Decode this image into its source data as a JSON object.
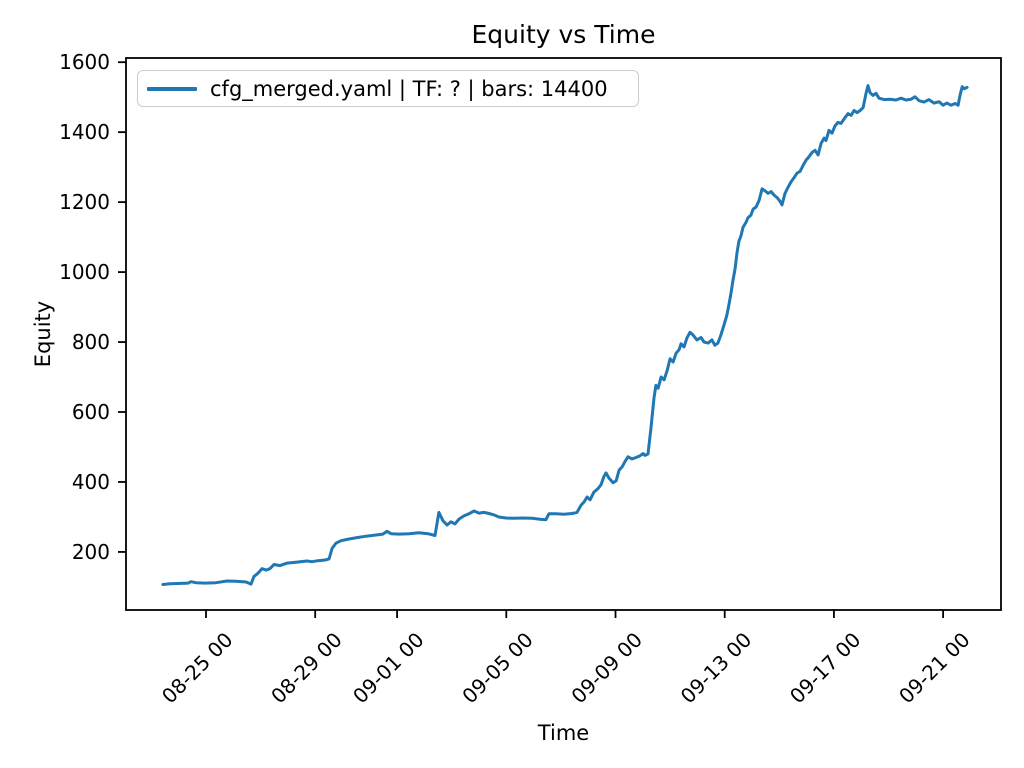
{
  "title": "Equity vs Time",
  "axes": {
    "x_label": "Time",
    "y_label": "Equity"
  },
  "legend": {
    "position": "upper left",
    "entries": [
      {
        "label": "cfg_merged.yaml | TF: ? | bars: 14400",
        "color": "#1f77b4"
      }
    ]
  },
  "chart_data": {
    "type": "line",
    "title": "Equity vs Time",
    "xlabel": "Time",
    "ylabel": "Equity",
    "grid": false,
    "legend_position": "upper left",
    "x_unit": "days since 08-25 00:00",
    "xlim": [
      -2.93,
      29.12
    ],
    "ylim": [
      34,
      1612
    ],
    "y_ticks": [
      200,
      400,
      600,
      800,
      1000,
      1200,
      1400,
      1600
    ],
    "x_ticks": [
      {
        "t": 0,
        "label": "08-25 00"
      },
      {
        "t": 4,
        "label": "08-29 00"
      },
      {
        "t": 7,
        "label": "09-01 00"
      },
      {
        "t": 11,
        "label": "09-05 00"
      },
      {
        "t": 15,
        "label": "09-09 00"
      },
      {
        "t": 19,
        "label": "09-13 00"
      },
      {
        "t": 23,
        "label": "09-17 00"
      },
      {
        "t": 27,
        "label": "09-21 00"
      }
    ],
    "series": [
      {
        "name": "cfg_merged.yaml | TF: ? | bars: 14400",
        "color": "#1f77b4",
        "line_width": 3,
        "points": [
          [
            -1.58,
            107
          ],
          [
            -1.32,
            109
          ],
          [
            -0.92,
            110
          ],
          [
            -0.66,
            111
          ],
          [
            -0.55,
            115
          ],
          [
            -0.37,
            112
          ],
          [
            -0.04,
            111
          ],
          [
            0.37,
            112
          ],
          [
            0.77,
            117
          ],
          [
            1.1,
            116
          ],
          [
            1.47,
            114
          ],
          [
            1.65,
            108
          ],
          [
            1.76,
            130
          ],
          [
            1.9,
            139
          ],
          [
            2.05,
            152
          ],
          [
            2.2,
            148
          ],
          [
            2.34,
            152
          ],
          [
            2.49,
            164
          ],
          [
            2.71,
            161
          ],
          [
            2.97,
            168
          ],
          [
            3.33,
            171
          ],
          [
            3.7,
            174
          ],
          [
            3.88,
            172
          ],
          [
            4.1,
            175
          ],
          [
            4.36,
            177
          ],
          [
            4.51,
            180
          ],
          [
            4.62,
            210
          ],
          [
            4.76,
            225
          ],
          [
            4.95,
            232
          ],
          [
            5.24,
            237
          ],
          [
            5.53,
            241
          ],
          [
            5.86,
            245
          ],
          [
            6.19,
            248
          ],
          [
            6.48,
            251
          ],
          [
            6.63,
            259
          ],
          [
            6.78,
            252
          ],
          [
            7.07,
            251
          ],
          [
            7.44,
            252
          ],
          [
            7.8,
            255
          ],
          [
            8.13,
            252
          ],
          [
            8.39,
            247
          ],
          [
            8.53,
            313
          ],
          [
            8.68,
            289
          ],
          [
            8.83,
            277
          ],
          [
            8.97,
            286
          ],
          [
            9.12,
            280
          ],
          [
            9.27,
            294
          ],
          [
            9.45,
            303
          ],
          [
            9.63,
            309
          ],
          [
            9.82,
            317
          ],
          [
            10.0,
            311
          ],
          [
            10.18,
            313
          ],
          [
            10.37,
            310
          ],
          [
            10.55,
            306
          ],
          [
            10.73,
            300
          ],
          [
            10.99,
            297
          ],
          [
            11.28,
            296
          ],
          [
            11.61,
            297
          ],
          [
            11.94,
            296
          ],
          [
            12.27,
            293
          ],
          [
            12.45,
            292
          ],
          [
            12.56,
            309
          ],
          [
            12.82,
            309
          ],
          [
            13.11,
            308
          ],
          [
            13.41,
            310
          ],
          [
            13.59,
            313
          ],
          [
            13.74,
            334
          ],
          [
            13.85,
            343
          ],
          [
            13.96,
            357
          ],
          [
            14.07,
            349
          ],
          [
            14.21,
            371
          ],
          [
            14.36,
            381
          ],
          [
            14.47,
            392
          ],
          [
            14.58,
            416
          ],
          [
            14.65,
            426
          ],
          [
            14.76,
            411
          ],
          [
            14.91,
            398
          ],
          [
            15.02,
            403
          ],
          [
            15.13,
            434
          ],
          [
            15.24,
            443
          ],
          [
            15.35,
            459
          ],
          [
            15.46,
            472
          ],
          [
            15.6,
            466
          ],
          [
            15.75,
            470
          ],
          [
            15.9,
            475
          ],
          [
            16.01,
            481
          ],
          [
            16.08,
            476
          ],
          [
            16.19,
            480
          ],
          [
            16.3,
            555
          ],
          [
            16.41,
            640
          ],
          [
            16.48,
            676
          ],
          [
            16.56,
            668
          ],
          [
            16.67,
            700
          ],
          [
            16.78,
            692
          ],
          [
            16.89,
            718
          ],
          [
            17.0,
            752
          ],
          [
            17.11,
            743
          ],
          [
            17.22,
            768
          ],
          [
            17.33,
            778
          ],
          [
            17.4,
            795
          ],
          [
            17.51,
            786
          ],
          [
            17.62,
            812
          ],
          [
            17.73,
            828
          ],
          [
            17.84,
            820
          ],
          [
            17.98,
            806
          ],
          [
            18.13,
            813
          ],
          [
            18.24,
            800
          ],
          [
            18.39,
            797
          ],
          [
            18.53,
            806
          ],
          [
            18.64,
            791
          ],
          [
            18.75,
            797
          ],
          [
            18.86,
            820
          ],
          [
            18.97,
            848
          ],
          [
            19.08,
            877
          ],
          [
            19.15,
            905
          ],
          [
            19.23,
            940
          ],
          [
            19.3,
            975
          ],
          [
            19.38,
            1010
          ],
          [
            19.45,
            1055
          ],
          [
            19.52,
            1088
          ],
          [
            19.6,
            1105
          ],
          [
            19.67,
            1128
          ],
          [
            19.78,
            1142
          ],
          [
            19.85,
            1155
          ],
          [
            19.96,
            1163
          ],
          [
            20.04,
            1180
          ],
          [
            20.15,
            1186
          ],
          [
            20.26,
            1205
          ],
          [
            20.37,
            1238
          ],
          [
            20.48,
            1232
          ],
          [
            20.59,
            1225
          ],
          [
            20.7,
            1230
          ],
          [
            20.81,
            1220
          ],
          [
            20.92,
            1213
          ],
          [
            21.03,
            1202
          ],
          [
            21.1,
            1192
          ],
          [
            21.21,
            1225
          ],
          [
            21.32,
            1243
          ],
          [
            21.43,
            1258
          ],
          [
            21.54,
            1270
          ],
          [
            21.65,
            1283
          ],
          [
            21.76,
            1288
          ],
          [
            21.87,
            1305
          ],
          [
            21.98,
            1320
          ],
          [
            22.09,
            1330
          ],
          [
            22.2,
            1342
          ],
          [
            22.31,
            1348
          ],
          [
            22.42,
            1335
          ],
          [
            22.53,
            1368
          ],
          [
            22.64,
            1383
          ],
          [
            22.71,
            1376
          ],
          [
            22.82,
            1405
          ],
          [
            22.93,
            1397
          ],
          [
            23.04,
            1418
          ],
          [
            23.15,
            1428
          ],
          [
            23.26,
            1425
          ],
          [
            23.41,
            1442
          ],
          [
            23.52,
            1453
          ],
          [
            23.63,
            1448
          ],
          [
            23.74,
            1462
          ],
          [
            23.85,
            1456
          ],
          [
            23.96,
            1462
          ],
          [
            24.07,
            1470
          ],
          [
            24.18,
            1512
          ],
          [
            24.25,
            1533
          ],
          [
            24.32,
            1513
          ],
          [
            24.43,
            1505
          ],
          [
            24.54,
            1511
          ],
          [
            24.65,
            1497
          ],
          [
            24.84,
            1493
          ],
          [
            25.05,
            1494
          ],
          [
            25.27,
            1492
          ],
          [
            25.46,
            1497
          ],
          [
            25.64,
            1492
          ],
          [
            25.82,
            1494
          ],
          [
            25.97,
            1501
          ],
          [
            26.12,
            1490
          ],
          [
            26.3,
            1486
          ],
          [
            26.48,
            1493
          ],
          [
            26.67,
            1483
          ],
          [
            26.85,
            1487
          ],
          [
            27.0,
            1477
          ],
          [
            27.14,
            1483
          ],
          [
            27.29,
            1477
          ],
          [
            27.44,
            1482
          ],
          [
            27.55,
            1477
          ],
          [
            27.62,
            1505
          ],
          [
            27.7,
            1530
          ],
          [
            27.77,
            1524
          ],
          [
            27.88,
            1528
          ]
        ]
      }
    ]
  }
}
